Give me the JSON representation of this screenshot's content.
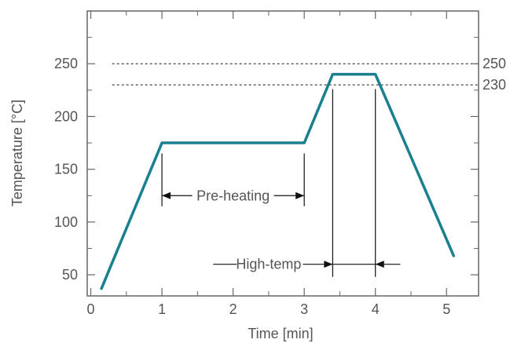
{
  "chart_data": {
    "type": "line",
    "xlabel": "Time [min]",
    "ylabel": "Temperature [°C]",
    "xlim": [
      -0.05,
      5.45
    ],
    "ylim": [
      30,
      300
    ],
    "x_ticks": [
      0,
      1,
      2,
      3,
      4,
      5
    ],
    "x_tick_labels": [
      "0",
      "1",
      "2",
      "3",
      "4",
      "5"
    ],
    "y_ticks": [
      50,
      100,
      150,
      200,
      250
    ],
    "y_tick_labels": [
      "50",
      "100",
      "150",
      "200",
      "250"
    ],
    "series": [
      {
        "color": "#1a7f8e",
        "x": [
          0.15,
          1.0,
          3.0,
          3.4,
          4.0,
          5.1
        ],
        "y": [
          37,
          175,
          175,
          240,
          240,
          68
        ]
      }
    ],
    "reference_lines": [
      {
        "y": 250,
        "label": "250",
        "style": "dotted"
      },
      {
        "y": 230,
        "label": "230",
        "style": "dotted"
      }
    ],
    "annotations": [
      {
        "label": "Pre-heating",
        "x_start": 1.0,
        "x_end": 3.0,
        "y": 125,
        "arrows": "inward"
      },
      {
        "label": "High-temp",
        "x_start": 3.4,
        "x_end": 4.0,
        "y": 60,
        "arrows": "outward"
      }
    ],
    "grid": false
  }
}
